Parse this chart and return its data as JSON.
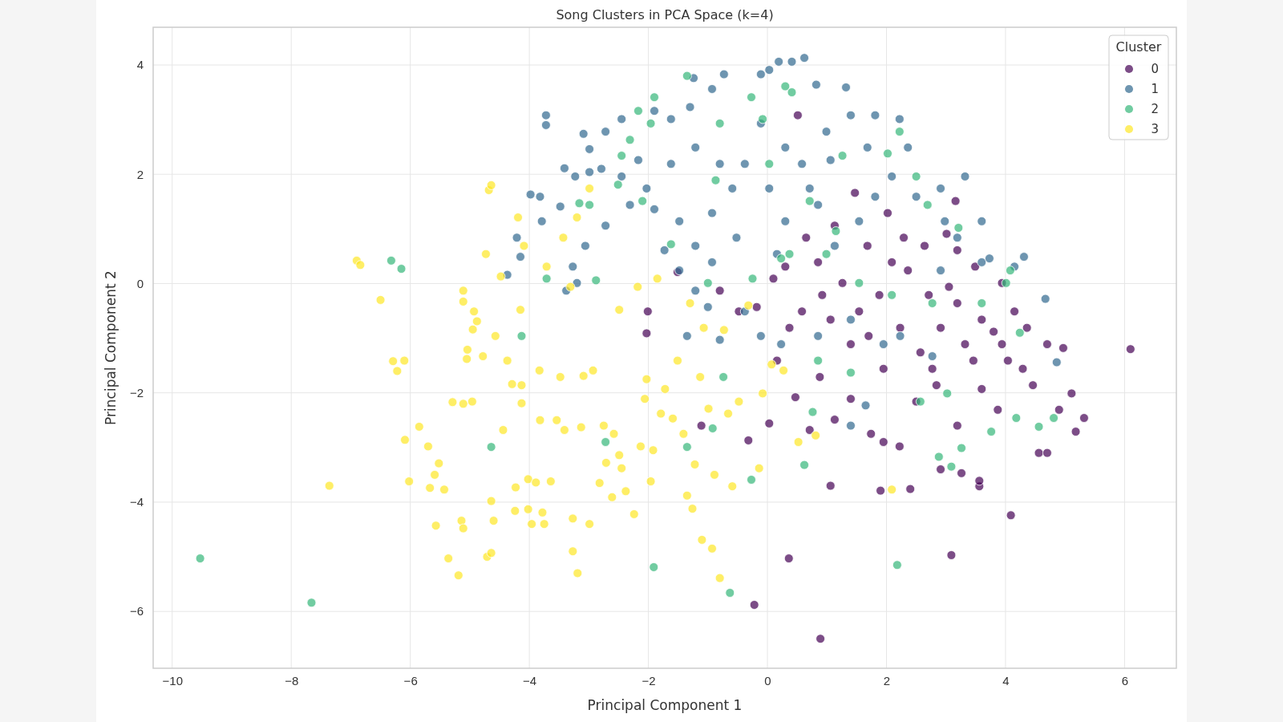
{
  "chart_data": {
    "type": "scatter",
    "title": "Song Clusters in PCA Space (k=4)",
    "xlabel": "Principal Component 1",
    "ylabel": "Principal Component 2",
    "legend_title": "Cluster",
    "legend": "top right",
    "grid": true,
    "marker": "circle",
    "xlim": [
      -10.32,
      6.87
    ],
    "ylim": [
      -7.04,
      4.69
    ],
    "xticks": [
      {
        "value": -10,
        "label": "−10"
      },
      {
        "value": -8,
        "label": "−8"
      },
      {
        "value": -6,
        "label": "−6"
      },
      {
        "value": -4,
        "label": "−4"
      },
      {
        "value": -2,
        "label": "−2"
      },
      0,
      2,
      4,
      6
    ],
    "yticks": [
      {
        "value": -6,
        "label": "−6"
      },
      {
        "value": -4,
        "label": "−4"
      },
      {
        "value": -2,
        "label": "−2"
      },
      0,
      2,
      4
    ],
    "series": [
      {
        "name": "0",
        "color": "#440154",
        "x": [
          6.1,
          0.89,
          -0.22,
          0.36,
          3.09,
          4.09,
          1.06,
          1.9,
          2.4,
          3.56,
          3.56,
          2.91,
          3.26,
          4.56,
          4.7,
          5.18,
          5.32,
          4.9,
          5.11,
          4.97,
          4.7,
          4.46,
          4.29,
          4.04,
          3.8,
          3.94,
          3.49,
          3.19,
          3.16,
          3.01,
          2.64,
          2.29,
          2.02,
          1.47,
          1.13,
          0.51,
          0.85,
          0.65,
          0.3,
          0.1,
          -0.18,
          -0.48,
          -0.8,
          -1.51,
          -2.01,
          -2.03,
          -1.11,
          -0.32,
          0.03,
          0.47,
          0.71,
          0.88,
          1.13,
          1.4,
          1.74,
          1.95,
          2.22,
          2.5,
          2.84,
          3.19,
          3.6,
          3.87,
          1.7,
          1.54,
          1.88,
          2.23,
          2.57,
          2.91,
          3.19,
          3.46,
          3.6,
          1.06,
          1.26,
          0.92,
          0.58,
          0.37,
          0.16,
          1.4,
          1.95,
          2.36,
          2.71,
          3.05,
          3.32,
          4.15,
          4.36,
          1.68,
          2.09,
          3.94,
          2.77
        ],
        "values": [
          -1.2,
          -6.5,
          -5.88,
          -5.03,
          -4.97,
          -4.24,
          -3.7,
          -3.79,
          -3.76,
          -3.71,
          -3.61,
          -3.4,
          -3.47,
          -3.1,
          -3.1,
          -2.71,
          -2.46,
          -2.31,
          -2.01,
          -1.18,
          -1.11,
          -1.86,
          -1.56,
          -1.41,
          -0.88,
          0.01,
          0.31,
          0.61,
          1.51,
          0.91,
          0.69,
          0.84,
          1.29,
          1.66,
          1.06,
          3.08,
          0.39,
          0.84,
          0.31,
          0.09,
          -0.43,
          -0.51,
          -0.13,
          0.21,
          -0.51,
          -0.91,
          -2.6,
          -2.87,
          -2.56,
          -2.08,
          -2.68,
          -1.71,
          -2.49,
          -2.11,
          -2.75,
          -2.9,
          -2.98,
          -2.16,
          -1.86,
          -2.6,
          -1.93,
          -2.31,
          -0.96,
          -0.51,
          -0.21,
          -0.81,
          -1.26,
          -0.81,
          -0.36,
          -1.41,
          -0.66,
          -0.66,
          0.01,
          -0.21,
          -0.51,
          -0.81,
          -1.41,
          -1.11,
          -1.56,
          0.24,
          -0.21,
          -0.06,
          -1.11,
          -0.51,
          -0.81,
          0.69,
          0.39,
          -1.11,
          -1.56
        ]
      },
      {
        "name": "1",
        "color": "#31688e",
        "x": [
          0.62,
          0.19,
          0.41,
          0.03,
          -0.11,
          0.82,
          1.32,
          -0.73,
          -0.93,
          -1.24,
          -1.3,
          -1.62,
          -1.9,
          -3.72,
          -3.72,
          -3.09,
          -2.99,
          -2.72,
          -2.45,
          -3.41,
          -3.23,
          -2.99,
          -2.79,
          -2.45,
          -2.17,
          -3.98,
          -3.82,
          -3.79,
          -3.48,
          -4.21,
          -4.15,
          -4.37,
          -3.27,
          -3.2,
          -3.38,
          -3.06,
          -2.72,
          -2.31,
          -1.9,
          -1.48,
          -1.21,
          -0.93,
          -1.73,
          -1.48,
          -1.21,
          -1.0,
          -1.35,
          -0.8,
          -0.38,
          -0.11,
          0.23,
          -0.59,
          -0.38,
          -0.11,
          0.3,
          0.58,
          0.99,
          1.4,
          1.68,
          1.81,
          2.22,
          2.36,
          2.09,
          2.5,
          2.91,
          3.32,
          2.98,
          3.19,
          3.6,
          3.73,
          4.15,
          4.31,
          4.67,
          4.86,
          1.4,
          1.95,
          1.4,
          1.65,
          2.23,
          2.77,
          0.85,
          1.13,
          1.54,
          0.85,
          0.3,
          0.03,
          -0.8,
          -1.21,
          -1.62,
          -2.03,
          -0.52,
          -0.93,
          0.16,
          0.71,
          1.06,
          1.81,
          3.6,
          2.91
        ],
        "values": [
          4.13,
          4.06,
          4.06,
          3.91,
          3.83,
          3.64,
          3.59,
          3.83,
          3.56,
          3.76,
          3.23,
          3.01,
          3.16,
          3.08,
          2.9,
          2.74,
          2.46,
          2.78,
          3.01,
          2.11,
          1.96,
          2.04,
          2.1,
          1.96,
          2.26,
          1.63,
          1.59,
          1.14,
          1.41,
          0.84,
          0.49,
          0.16,
          0.31,
          0.01,
          -0.13,
          0.69,
          1.06,
          1.44,
          1.36,
          1.14,
          0.69,
          0.39,
          0.61,
          0.24,
          -0.13,
          -0.43,
          -0.96,
          -1.03,
          -0.51,
          -0.96,
          -1.11,
          1.74,
          2.19,
          2.93,
          2.49,
          2.19,
          2.78,
          3.08,
          2.49,
          3.08,
          3.01,
          2.49,
          1.96,
          1.59,
          1.74,
          1.96,
          1.14,
          0.84,
          0.39,
          0.46,
          0.31,
          0.49,
          -0.28,
          -1.44,
          -0.66,
          -1.11,
          -2.6,
          -2.23,
          -0.96,
          -1.33,
          -0.96,
          0.69,
          1.14,
          1.44,
          1.14,
          1.74,
          2.19,
          2.49,
          2.19,
          1.74,
          0.84,
          1.29,
          0.54,
          1.74,
          2.26,
          1.59,
          1.14,
          0.24
        ]
      },
      {
        "name": "2",
        "color": "#35b779",
        "x": [
          -9.53,
          -7.66,
          -6.32,
          -6.15,
          -4.64,
          -4.13,
          -2.72,
          -1.91,
          -1.35,
          -0.92,
          -0.74,
          -0.63,
          -0.27,
          0.23,
          0.62,
          0.76,
          2.18,
          2.88,
          3.09,
          3.26,
          3.76,
          4.18,
          4.56,
          4.81,
          4.24,
          4.08,
          3.6,
          3.21,
          2.69,
          2.5,
          2.22,
          2.02,
          1.26,
          0.71,
          0.3,
          0.41,
          -0.08,
          -0.27,
          -0.8,
          -1.35,
          -1.9,
          -2.17,
          -1.96,
          -2.31,
          -2.45,
          -2.51,
          -2.99,
          -3.16,
          -3.71,
          -2.88,
          -2.1,
          -1.62,
          -1.0,
          -0.25,
          0.37,
          0.99,
          1.54,
          2.09,
          2.77,
          0.85,
          1.4,
          2.57,
          3.02,
          1.15,
          0.03,
          -0.87,
          4.01
        ],
        "values": [
          -5.03,
          -5.84,
          0.42,
          0.27,
          -2.99,
          -0.96,
          -2.9,
          -5.19,
          -2.99,
          -2.65,
          -1.71,
          -5.66,
          -3.59,
          0.46,
          -3.32,
          -2.35,
          -5.15,
          -3.17,
          -3.35,
          -3.01,
          -2.71,
          -2.46,
          -2.62,
          -2.46,
          -0.9,
          0.24,
          -0.36,
          1.02,
          1.44,
          1.96,
          2.78,
          2.38,
          2.34,
          1.51,
          3.61,
          3.5,
          3.01,
          3.41,
          2.93,
          3.8,
          3.41,
          3.16,
          2.93,
          2.63,
          2.34,
          1.81,
          1.44,
          1.47,
          0.09,
          0.06,
          1.51,
          0.72,
          0.01,
          0.09,
          0.54,
          0.54,
          0.01,
          -0.21,
          -0.36,
          -1.41,
          -1.63,
          -2.16,
          -2.01,
          0.96,
          2.19,
          1.89,
          0.01
        ]
      },
      {
        "name": "3",
        "color": "#fde725",
        "x": [
          -6.9,
          -6.84,
          -6.5,
          -7.36,
          -6.29,
          -6.1,
          -6.22,
          -6.09,
          -6.02,
          -5.85,
          -5.7,
          -5.67,
          -5.59,
          -5.52,
          -5.43,
          -5.57,
          -5.36,
          -5.29,
          -5.19,
          -5.11,
          -5.11,
          -5.11,
          -5.14,
          -5.11,
          -5.04,
          -5.05,
          -4.96,
          -4.93,
          -4.95,
          -4.88,
          -4.73,
          -4.78,
          -4.71,
          -4.64,
          -4.64,
          -4.6,
          -4.68,
          -4.64,
          -4.57,
          -4.48,
          -4.44,
          -4.37,
          -4.29,
          -4.24,
          -4.23,
          -4.19,
          -4.15,
          -4.13,
          -4.09,
          -4.13,
          -4.02,
          -4.02,
          -3.96,
          -3.89,
          -3.83,
          -3.82,
          -3.78,
          -3.75,
          -3.71,
          -3.64,
          -3.54,
          -3.48,
          -3.43,
          -3.41,
          -3.27,
          -3.27,
          -3.2,
          -3.19,
          -3.13,
          -3.09,
          -2.99,
          -2.93,
          -2.82,
          -2.75,
          -2.71,
          -2.61,
          -2.58,
          -2.49,
          -2.49,
          -2.45,
          -2.38,
          -2.24,
          -2.13,
          -2.03,
          -2.06,
          -1.96,
          -1.92,
          -1.85,
          -1.79,
          -1.72,
          -1.59,
          -1.51,
          -1.41,
          -1.35,
          -1.3,
          -1.26,
          -1.22,
          -1.13,
          -1.1,
          -0.99,
          -0.93,
          -0.89,
          -0.8,
          -0.73,
          -0.66,
          -0.59,
          -0.48,
          -0.32,
          -0.14,
          -0.08,
          0.07,
          0.52,
          0.81,
          2.09,
          0.27,
          -2.99,
          -2.18,
          -3.31,
          -1.07
        ],
        "values": [
          0.42,
          0.34,
          -0.3,
          -3.7,
          -1.42,
          -1.41,
          -1.6,
          -2.86,
          -3.62,
          -2.62,
          -2.98,
          -3.74,
          -3.5,
          -3.29,
          -3.77,
          -4.43,
          -5.03,
          -2.17,
          -5.34,
          -0.13,
          -0.33,
          -2.2,
          -4.34,
          -4.48,
          -1.21,
          -1.38,
          -2.16,
          -0.51,
          -0.84,
          -0.69,
          0.54,
          -1.33,
          -5.0,
          -4.93,
          -3.98,
          -4.34,
          1.71,
          1.8,
          -0.96,
          0.13,
          -2.68,
          -1.41,
          -1.84,
          -4.16,
          -3.73,
          1.21,
          -0.48,
          -2.19,
          0.69,
          -1.86,
          -3.58,
          -4.13,
          -4.4,
          -3.64,
          -1.59,
          -2.5,
          -4.19,
          -4.4,
          0.31,
          -3.62,
          -2.5,
          -1.71,
          0.84,
          -2.68,
          -4.9,
          -4.3,
          1.21,
          -5.3,
          -2.63,
          -1.69,
          -4.4,
          -1.59,
          -3.65,
          -2.6,
          -3.28,
          -3.91,
          -2.75,
          -3.14,
          -0.48,
          -3.38,
          -3.8,
          -4.22,
          -2.98,
          -1.75,
          -2.11,
          -3.62,
          -3.05,
          0.09,
          -2.38,
          -1.93,
          -2.47,
          -1.41,
          -2.75,
          -3.88,
          -0.36,
          -4.12,
          -3.31,
          -1.71,
          -4.69,
          -2.29,
          -4.85,
          -3.5,
          -5.39,
          -0.85,
          -2.38,
          -3.71,
          -2.16,
          -0.4,
          -3.38,
          -2.01,
          -1.48,
          -2.9,
          -2.78,
          -3.77,
          -1.59,
          1.74,
          -0.06,
          -0.06,
          -0.81
        ]
      }
    ]
  }
}
